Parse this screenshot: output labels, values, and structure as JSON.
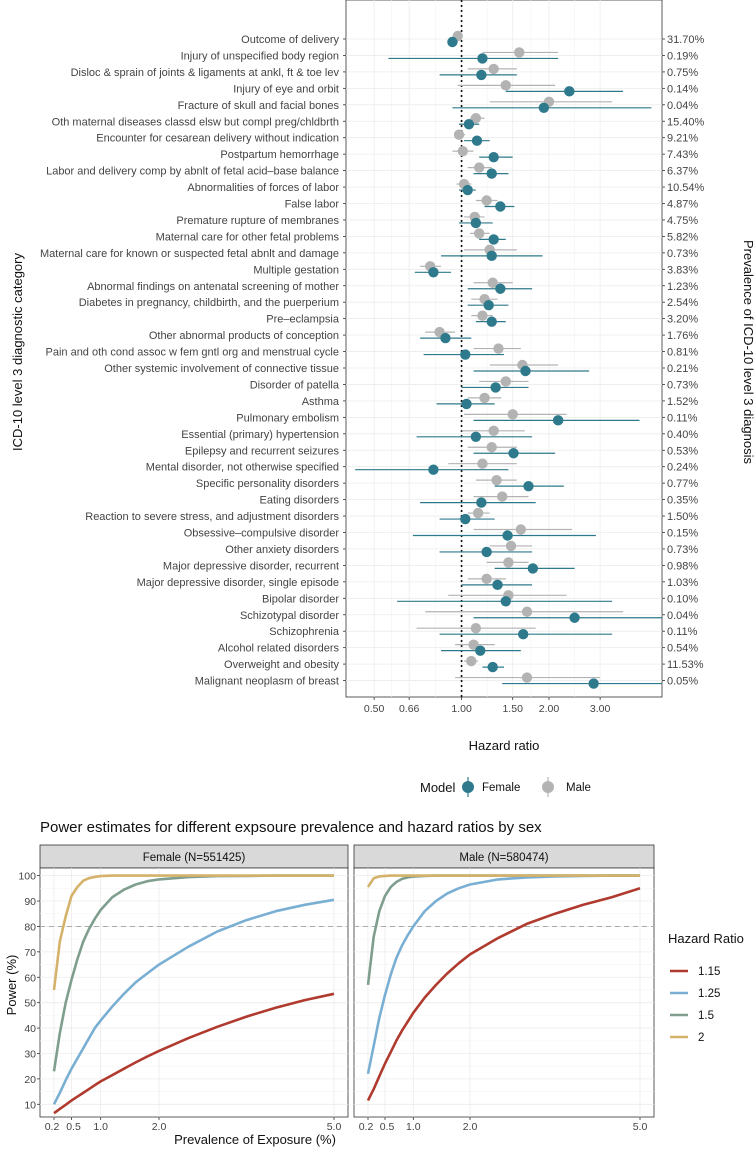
{
  "chart_data": [
    {
      "type": "forest",
      "xlabel": "Hazard ratio",
      "ylabel": "ICD-10 level 3 diagnostic category",
      "ylabel_right": "Prevalence of ICD-10 level 3 diagnosis",
      "x_scale": "log",
      "xlim": [
        0.4,
        4.9
      ],
      "x_ticks": [
        0.5,
        0.66,
        1.0,
        1.5,
        2.0,
        3.0
      ],
      "x_tick_labels": [
        "0.50",
        "0.66",
        "1.00",
        "1.50",
        "2.00",
        "3.00"
      ],
      "reference_line": 1.0,
      "legend": {
        "title": "Model",
        "entries": [
          "Female",
          "Male"
        ],
        "colors": [
          "#2e7a8c",
          "#b3b3b3"
        ]
      },
      "rows": [
        {
          "label": "Outcome of delivery",
          "prevalence": "31.70%",
          "female": [
            0.93,
            0.9,
            0.97
          ],
          "male": [
            0.97,
            0.95,
            1.0
          ]
        },
        {
          "label": "Injury of unspecified body region",
          "prevalence": "0.19%",
          "female": [
            1.18,
            0.56,
            2.15
          ],
          "male": [
            1.58,
            1.18,
            2.15
          ]
        },
        {
          "label": "Disloc & sprain of joints & ligaments at ankl, ft & toe lev",
          "prevalence": "0.75%",
          "female": [
            1.17,
            0.84,
            1.55
          ],
          "male": [
            1.29,
            1.05,
            1.55
          ]
        },
        {
          "label": "Injury of eye and orbit",
          "prevalence": "0.14%",
          "female": [
            2.35,
            1.42,
            3.6
          ],
          "male": [
            1.42,
            0.97,
            2.1
          ]
        },
        {
          "label": "Fracture of skull and facial bones",
          "prevalence": "0.04%",
          "female": [
            1.92,
            0.93,
            4.5
          ],
          "male": [
            2.0,
            1.25,
            3.3
          ]
        },
        {
          "label": "Oth maternal diseases classd elsw but compl preg/chldbrth",
          "prevalence": "15.40%",
          "female": [
            1.06,
            0.98,
            1.15
          ],
          "male": [
            1.12,
            1.07,
            1.2
          ]
        },
        {
          "label": "Encounter for cesarean delivery without indication",
          "prevalence": "9.21%",
          "female": [
            1.13,
            1.02,
            1.25
          ],
          "male": [
            0.98,
            0.95,
            1.03
          ]
        },
        {
          "label": "Postpartum hemorrhage",
          "prevalence": "7.43%",
          "female": [
            1.29,
            1.15,
            1.5
          ],
          "male": [
            1.01,
            0.93,
            1.1
          ]
        },
        {
          "label": "Labor and delivery comp by abnlt of fetal acid–base balance",
          "prevalence": "6.37%",
          "female": [
            1.27,
            1.1,
            1.45
          ],
          "male": [
            1.15,
            1.05,
            1.27
          ]
        },
        {
          "label": "Abnormalities of forces of labor",
          "prevalence": "10.54%",
          "female": [
            1.05,
            0.98,
            1.12
          ],
          "male": [
            1.02,
            0.96,
            1.08
          ]
        },
        {
          "label": "False labor",
          "prevalence": "4.87%",
          "female": [
            1.36,
            1.2,
            1.52
          ],
          "male": [
            1.22,
            1.12,
            1.33
          ]
        },
        {
          "label": "Premature rupture of membranes",
          "prevalence": "4.75%",
          "female": [
            1.12,
            0.98,
            1.28
          ],
          "male": [
            1.11,
            1.02,
            1.2
          ]
        },
        {
          "label": "Maternal care for other fetal problems",
          "prevalence": "5.82%",
          "female": [
            1.29,
            1.15,
            1.42
          ],
          "male": [
            1.15,
            1.07,
            1.25
          ]
        },
        {
          "label": "Maternal care for known or suspected fetal abnlt and damage",
          "prevalence": "0.73%",
          "female": [
            1.27,
            0.85,
            1.9
          ],
          "male": [
            1.25,
            1.02,
            1.55
          ]
        },
        {
          "label": "Multiple gestation",
          "prevalence": "3.83%",
          "female": [
            0.8,
            0.69,
            0.92
          ],
          "male": [
            0.78,
            0.72,
            0.85
          ]
        },
        {
          "label": "Abnormal findings on antenatal screening of mother",
          "prevalence": "1.23%",
          "female": [
            1.36,
            1.05,
            1.75
          ],
          "male": [
            1.28,
            1.1,
            1.5
          ]
        },
        {
          "label": "Diabetes in pregnancy, childbirth, and the puerperium",
          "prevalence": "2.54%",
          "female": [
            1.24,
            1.05,
            1.45
          ],
          "male": [
            1.2,
            1.08,
            1.33
          ]
        },
        {
          "label": "Pre–eclampsia",
          "prevalence": "3.20%",
          "female": [
            1.27,
            1.12,
            1.42
          ],
          "male": [
            1.18,
            1.08,
            1.28
          ]
        },
        {
          "label": "Other abnormal products of conception",
          "prevalence": "1.76%",
          "female": [
            0.88,
            0.72,
            1.08
          ],
          "male": [
            0.84,
            0.75,
            0.95
          ]
        },
        {
          "label": "Pain and oth cond assoc w fem gntl org and menstrual cycle",
          "prevalence": "0.81%",
          "female": [
            1.03,
            0.74,
            1.4
          ],
          "male": [
            1.34,
            1.1,
            1.6
          ]
        },
        {
          "label": "Other systemic involvement of connective tissue",
          "prevalence": "0.21%",
          "female": [
            1.66,
            1.1,
            2.75
          ],
          "male": [
            1.62,
            1.25,
            2.15
          ]
        },
        {
          "label": "Disorder of patella",
          "prevalence": "0.73%",
          "female": [
            1.31,
            1.0,
            1.7
          ],
          "male": [
            1.42,
            1.15,
            1.7
          ]
        },
        {
          "label": "Asthma",
          "prevalence": "1.52%",
          "female": [
            1.04,
            0.82,
            1.3
          ],
          "male": [
            1.2,
            1.05,
            1.37
          ]
        },
        {
          "label": "Pulmonary embolism",
          "prevalence": "0.11%",
          "female": [
            2.15,
            1.1,
            4.1
          ],
          "male": [
            1.5,
            1.02,
            2.3
          ]
        },
        {
          "label": "Essential (primary) hypertension",
          "prevalence": "0.40%",
          "female": [
            1.12,
            0.7,
            1.75
          ],
          "male": [
            1.29,
            1.0,
            1.65
          ]
        },
        {
          "label": "Epilepsy and recurrent seizures",
          "prevalence": "0.53%",
          "female": [
            1.51,
            1.1,
            2.1
          ],
          "male": [
            1.27,
            1.05,
            1.55
          ]
        },
        {
          "label": "Mental disorder, not otherwise specified",
          "prevalence": "0.24%",
          "female": [
            0.8,
            0.43,
            1.45
          ],
          "male": [
            1.18,
            0.9,
            1.55
          ]
        },
        {
          "label": "Specific personality disorders",
          "prevalence": "0.77%",
          "female": [
            1.7,
            1.3,
            2.25
          ],
          "male": [
            1.32,
            1.12,
            1.55
          ]
        },
        {
          "label": "Eating disorders",
          "prevalence": "0.35%",
          "female": [
            1.17,
            0.72,
            1.8
          ],
          "male": [
            1.38,
            1.1,
            1.7
          ]
        },
        {
          "label": "Reaction to severe stress, and adjustment disorders",
          "prevalence": "1.50%",
          "female": [
            1.03,
            0.84,
            1.3
          ],
          "male": [
            1.14,
            1.05,
            1.25
          ]
        },
        {
          "label": "Obsessive–compulsive disorder",
          "prevalence": "0.15%",
          "female": [
            1.44,
            0.68,
            2.9
          ],
          "male": [
            1.6,
            1.1,
            2.4
          ]
        },
        {
          "label": "Other anxiety disorders",
          "prevalence": "0.73%",
          "female": [
            1.22,
            0.84,
            1.75
          ],
          "male": [
            1.48,
            1.25,
            1.75
          ]
        },
        {
          "label": "Major depressive disorder, recurrent",
          "prevalence": "0.98%",
          "female": [
            1.76,
            1.3,
            2.45
          ],
          "male": [
            1.45,
            1.22,
            1.7
          ]
        },
        {
          "label": "Major depressive disorder, single episode",
          "prevalence": "1.03%",
          "female": [
            1.33,
            1.0,
            1.75
          ],
          "male": [
            1.22,
            1.05,
            1.42
          ]
        },
        {
          "label": "Bipolar disorder",
          "prevalence": "0.10%",
          "female": [
            1.42,
            0.6,
            3.3
          ],
          "male": [
            1.45,
            0.9,
            2.3
          ]
        },
        {
          "label": "Schizotypal disorder",
          "prevalence": "0.04%",
          "female": [
            2.45,
            1.1,
            4.9
          ],
          "male": [
            1.68,
            0.75,
            3.6
          ]
        },
        {
          "label": "Schizophrenia",
          "prevalence": "0.11%",
          "female": [
            1.63,
            0.84,
            3.3
          ],
          "male": [
            1.12,
            0.7,
            1.8
          ]
        },
        {
          "label": "Alcohol related disorders",
          "prevalence": "0.54%",
          "female": [
            1.16,
            0.85,
            1.6
          ],
          "male": [
            1.1,
            0.95,
            1.3
          ]
        },
        {
          "label": "Overweight and obesity",
          "prevalence": "11.53%",
          "female": [
            1.28,
            1.18,
            1.4
          ],
          "male": [
            1.08,
            1.02,
            1.14
          ]
        },
        {
          "label": "Malignant neoplasm of breast",
          "prevalence": "0.05%",
          "female": [
            2.85,
            1.38,
            4.9
          ],
          "male": [
            1.68,
            0.95,
            3.0
          ]
        }
      ]
    },
    {
      "type": "line",
      "title": "Power estimates for different expsoure prevalence and hazard ratios by sex",
      "xlabel": "Prevalence of Exposure (%)",
      "ylabel": "Power (%)",
      "xlim": [
        0.2,
        5.0
      ],
      "ylim": [
        10,
        100
      ],
      "x_ticks": [
        0.2,
        0.5,
        1.0,
        2.0,
        5.0
      ],
      "x_tick_labels": [
        "0.2",
        "0.5",
        "1.0",
        "2.0",
        "5.0"
      ],
      "y_ticks": [
        10,
        20,
        30,
        40,
        50,
        60,
        70,
        80,
        90,
        100
      ],
      "y_tick_labels": [
        "10",
        "20",
        "30",
        "40",
        "50",
        "60",
        "70",
        "80",
        "90",
        "100"
      ],
      "reference_line": 80,
      "legend": {
        "title": "Hazard Ratio",
        "entries": [
          "1.15",
          "1.25",
          "1.5",
          "2"
        ],
        "colors": [
          "#b03a2e",
          "#7aafd4",
          "#7f9e8e",
          "#d4b26a"
        ]
      },
      "x": [
        0.2,
        0.3,
        0.4,
        0.5,
        0.6,
        0.7,
        0.8,
        0.9,
        1.0,
        1.2,
        1.4,
        1.6,
        1.8,
        2.0,
        2.5,
        3.0,
        3.5,
        4.0,
        4.5,
        5.0
      ],
      "panels": [
        {
          "strip": "Female (N=551425)",
          "series": [
            {
              "name": "1.15",
              "values": [
                6.5,
                8.2,
                9.8,
                11.5,
                13.0,
                14.5,
                16.0,
                17.5,
                19.0,
                21.5,
                24.0,
                26.5,
                28.8,
                31.0,
                36.0,
                40.5,
                44.5,
                48.0,
                51.0,
                53.5
              ]
            },
            {
              "name": "1.25",
              "values": [
                10,
                14.5,
                19.5,
                24,
                28,
                32,
                36,
                40,
                43,
                48.5,
                53.5,
                58,
                61.5,
                65,
                72,
                78,
                82.5,
                86,
                88.5,
                90.5
              ]
            },
            {
              "name": "1.5",
              "values": [
                23,
                38,
                50,
                59,
                67,
                74,
                79,
                83,
                86.5,
                91.5,
                94.5,
                96.5,
                97.8,
                98.5,
                99.4,
                99.8,
                99.9,
                100,
                100,
                100
              ]
            },
            {
              "name": "2",
              "values": [
                55,
                74,
                84,
                92,
                95.5,
                98,
                99,
                99.5,
                99.8,
                100,
                100,
                100,
                100,
                100,
                100,
                100,
                100,
                100,
                100,
                100
              ]
            }
          ]
        },
        {
          "strip": "Male (N=580474)",
          "series": [
            {
              "name": "1.15",
              "values": [
                11.5,
                16,
                21,
                26,
                30.5,
                35,
                39,
                42.5,
                46,
                52,
                57,
                61.5,
                65.5,
                69,
                75.5,
                81,
                85,
                88.5,
                91.5,
                95
              ]
            },
            {
              "name": "1.25",
              "values": [
                22,
                33,
                44,
                53,
                61,
                67.5,
                72.5,
                76.5,
                80,
                86,
                90,
                93,
                95,
                96.5,
                98.5,
                99.3,
                99.7,
                99.9,
                100,
                100
              ]
            },
            {
              "name": "1.5",
              "values": [
                57,
                76,
                86,
                92,
                95.5,
                97.5,
                98.7,
                99.3,
                99.6,
                99.9,
                100,
                100,
                100,
                100,
                100,
                100,
                100,
                100,
                100,
                100
              ]
            },
            {
              "name": "2",
              "values": [
                95.5,
                99,
                99.7,
                99.9,
                100,
                100,
                100,
                100,
                100,
                100,
                100,
                100,
                100,
                100,
                100,
                100,
                100,
                100,
                100,
                100
              ]
            }
          ]
        }
      ]
    }
  ]
}
